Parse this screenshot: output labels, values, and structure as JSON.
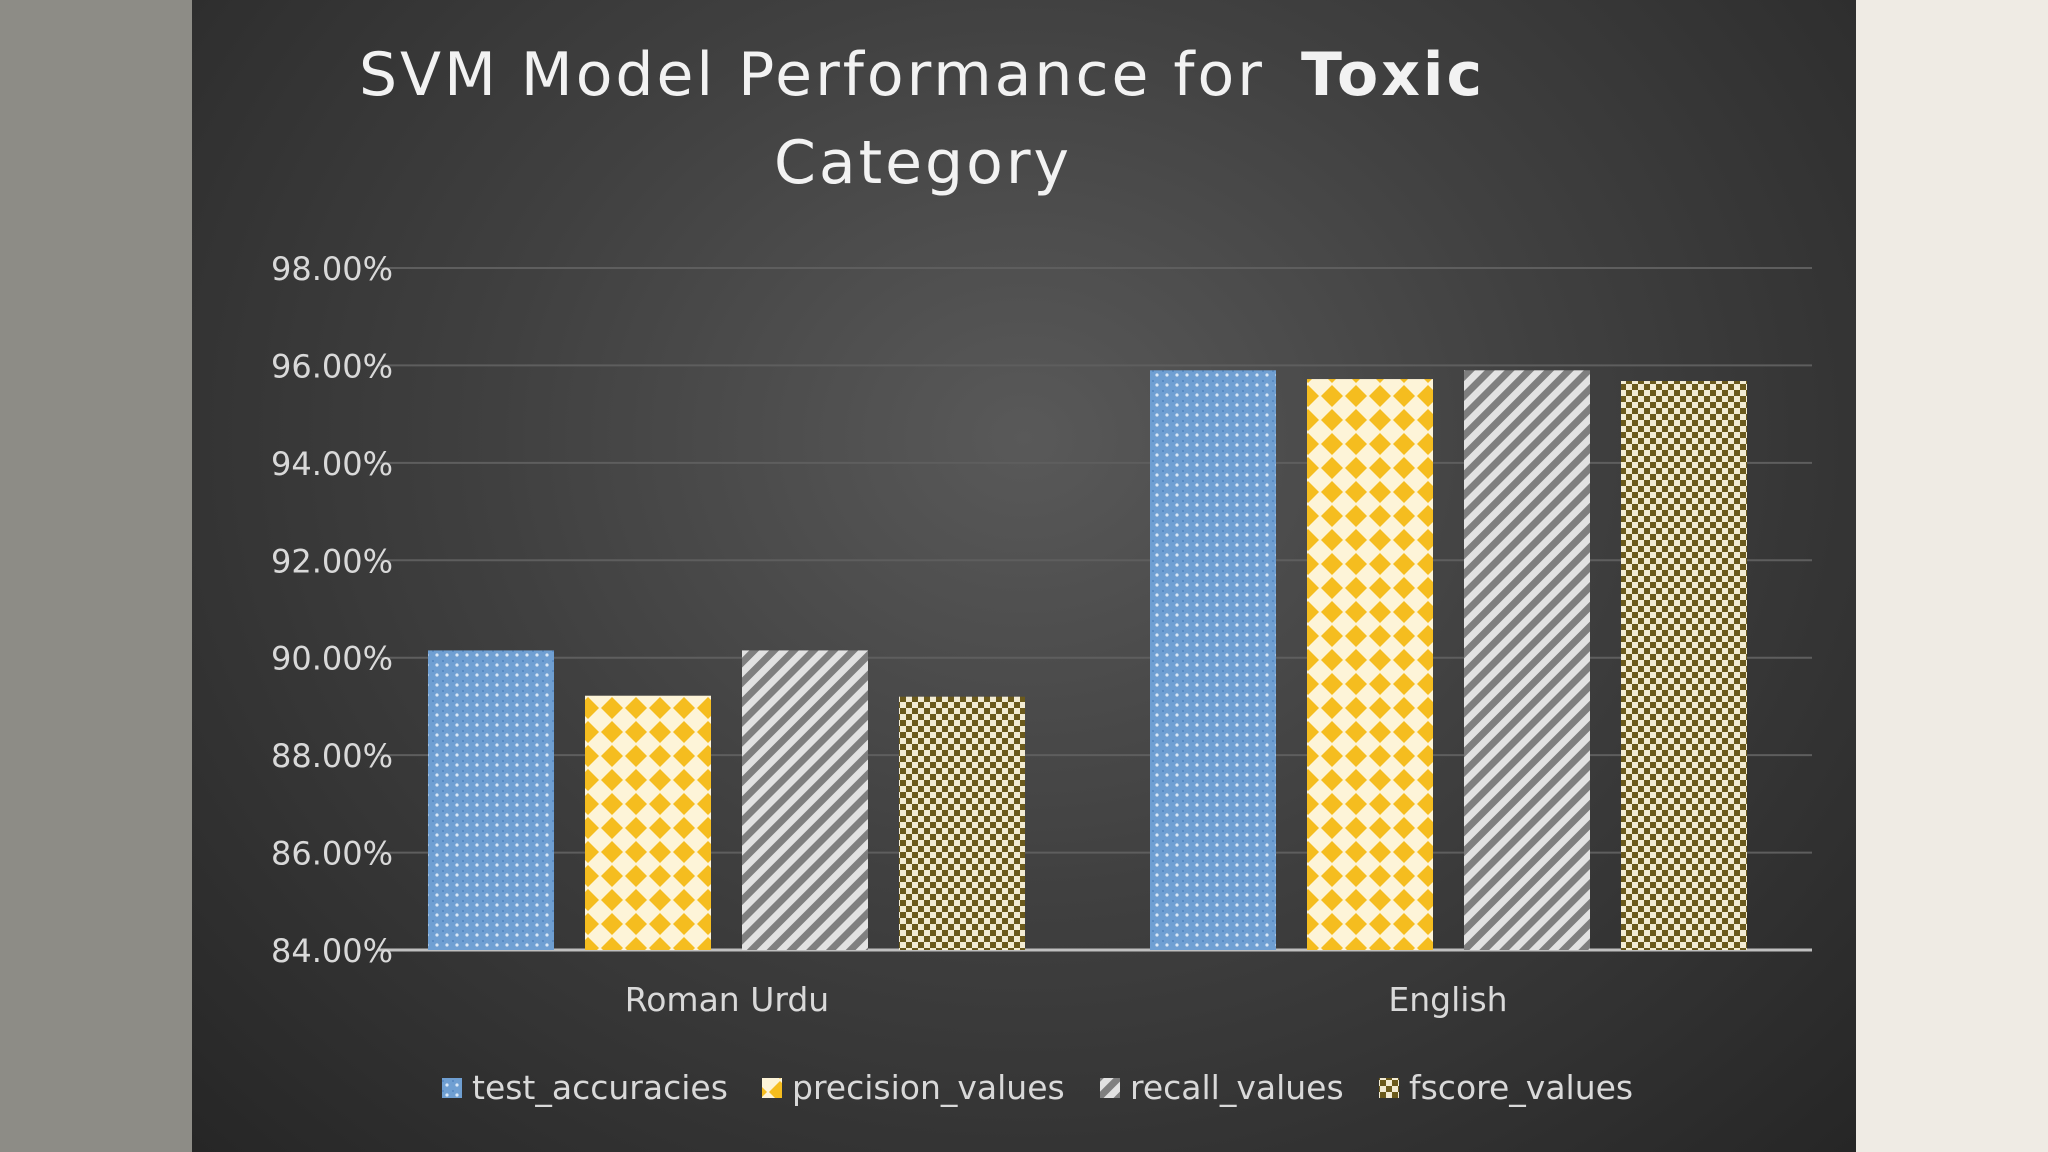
{
  "chart_data": {
    "type": "bar",
    "title": "SVM Model Performance for",
    "title_emphasis": "Toxic",
    "title_line2": "Category",
    "xlabel": "",
    "ylabel": "",
    "categories": [
      "Roman Urdu",
      "English"
    ],
    "series": [
      {
        "name": "test_accuracies",
        "values": [
          0.9015,
          0.959
        ],
        "color": "#6f9fd2",
        "pattern": "dots"
      },
      {
        "name": "precision_values",
        "values": [
          0.8922,
          0.9572
        ],
        "color": "#f5bd1f",
        "pattern": "diamonds"
      },
      {
        "name": "recall_values",
        "values": [
          0.9015,
          0.959
        ],
        "color": "#8c8c8c",
        "pattern": "diagonal-stripes"
      },
      {
        "name": "fscore_values",
        "values": [
          0.892,
          0.9568
        ],
        "color": "#6b5a1c",
        "pattern": "checks"
      }
    ],
    "ylim": [
      0.84,
      0.98
    ],
    "yticks": [
      0.84,
      0.86,
      0.88,
      0.9,
      0.92,
      0.94,
      0.96,
      0.98
    ],
    "ytick_labels": [
      "84.00%",
      "86.00%",
      "88.00%",
      "90.00%",
      "92.00%",
      "94.00%",
      "96.00%",
      "98.00%"
    ],
    "grid": true,
    "legend_position": "bottom"
  }
}
